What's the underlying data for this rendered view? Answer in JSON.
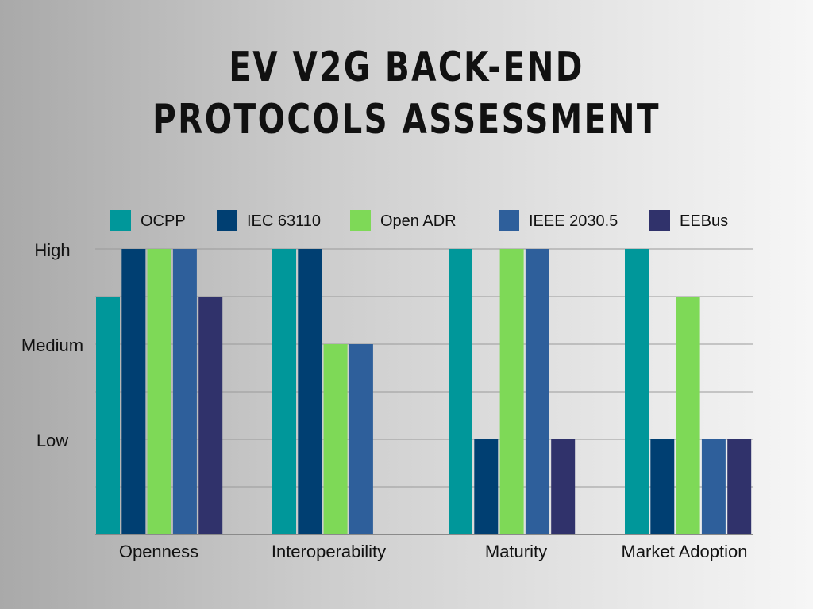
{
  "title": {
    "line1": "EV V2G BACK-END",
    "line2": "PROTOCOLS ASSESSMENT"
  },
  "chart_data": {
    "type": "bar",
    "categories": [
      "Openness",
      "Interoperability",
      "Maturity",
      "Market Adoption"
    ],
    "y_ticks": [
      {
        "label": "Low",
        "value": 2
      },
      {
        "label": "Medium",
        "value": 4
      },
      {
        "label": "High",
        "value": 6
      }
    ],
    "ylim": [
      0,
      6
    ],
    "grid": true,
    "legend": "top",
    "series": [
      {
        "name": "OCPP",
        "color": "#00979a",
        "values": [
          5,
          6,
          6,
          6
        ]
      },
      {
        "name": "IEC 63110",
        "color": "#003f72",
        "values": [
          6,
          6,
          2,
          2
        ]
      },
      {
        "name": "Open ADR",
        "color": "#7ed957",
        "values": [
          6,
          4,
          6,
          5
        ]
      },
      {
        "name": "IEEE 2030.5",
        "color": "#2e5f9b",
        "values": [
          6,
          4,
          6,
          2
        ]
      },
      {
        "name": "EEBus",
        "color": "#30326b",
        "values": [
          5,
          0,
          2,
          2
        ]
      }
    ]
  }
}
